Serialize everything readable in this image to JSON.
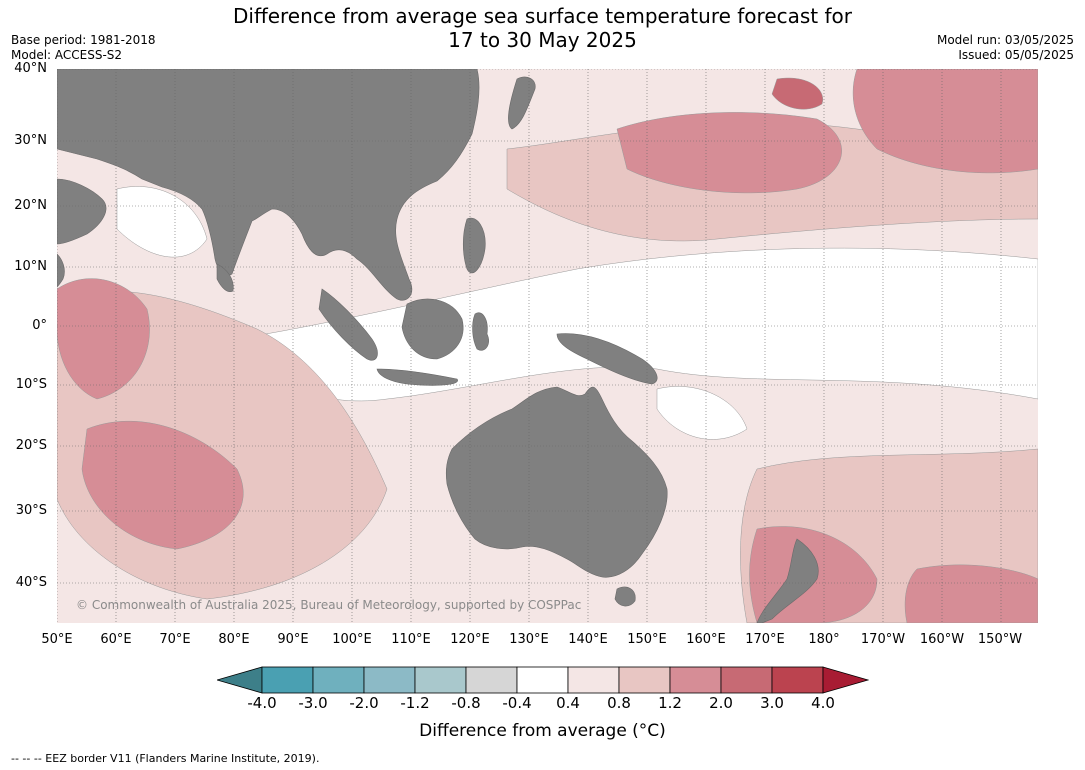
{
  "title": {
    "line1": "Difference from average sea surface temperature forecast for",
    "line2": "17 to 30 May 2025"
  },
  "meta_left": {
    "base_period": "Base period: 1981-2018",
    "model": "Model: ACCESS-S2"
  },
  "meta_right": {
    "model_run": "Model run: 03/05/2025",
    "issued": "Issued: 05/05/2025"
  },
  "latitude_labels": [
    "40°N",
    "30°N",
    "20°N",
    "10°N",
    "0°",
    "10°S",
    "20°S",
    "30°S",
    "40°S"
  ],
  "longitude_labels": [
    "50°E",
    "60°E",
    "70°E",
    "80°E",
    "90°E",
    "100°E",
    "110°E",
    "120°E",
    "130°E",
    "140°E",
    "150°E",
    "160°E",
    "170°E",
    "180°",
    "170°W",
    "160°W",
    "150°W"
  ],
  "copyright": "© Commonwealth of Australia 2025, Bureau of Meteorology, supported by COSPPac",
  "legend": {
    "tick_labels": [
      "-4.0",
      "-3.0",
      "-2.0",
      "-1.2",
      "-0.8",
      "-0.4",
      "0.4",
      "0.8",
      "1.2",
      "2.0",
      "3.0",
      "4.0"
    ],
    "colors": [
      "#3d7f89",
      "#4aa0b2",
      "#6fb0be",
      "#8cbac6",
      "#a9c8cc",
      "#d6d6d6",
      "#ffffff",
      "#f4e6e5",
      "#e8c6c3",
      "#d68d96",
      "#c76a74",
      "#bb434f",
      "#a81c33"
    ],
    "title": "Difference from average (°C)"
  },
  "land_color": "#808080",
  "footnote": "--  --  -- EEZ border V11 (Flanders Marine Institute, 2019)."
}
